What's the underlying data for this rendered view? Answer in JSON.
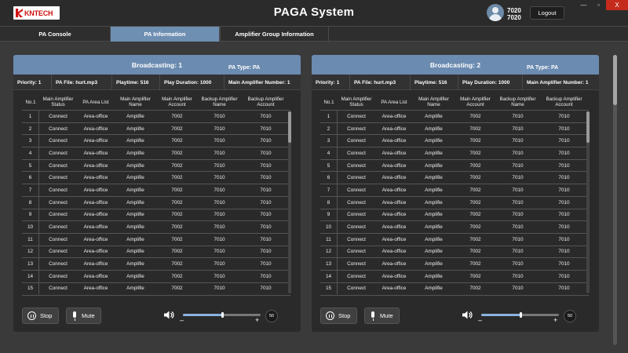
{
  "app": {
    "logo_text": "KNTECH",
    "title": "PAGA System",
    "user_line1": "7020",
    "user_line2": "7020",
    "logout_label": "Logout",
    "window_controls": {
      "minimize": "—",
      "restore": "▫",
      "close": "X"
    }
  },
  "tabs": [
    {
      "label": "PA Console",
      "active": false
    },
    {
      "label": "PA Information",
      "active": true
    },
    {
      "label": "Amplifier Group Information",
      "active": false
    }
  ],
  "panels": [
    {
      "broadcasting_title": "Broadcasting: 1",
      "pa_type": "PA Type: PA",
      "info": {
        "priority": "Priority: 1",
        "pa_file": "PA File: hurt.mp3",
        "playtime": "Playtime: 516",
        "play_duration": "Play Duration: 1000",
        "main_amplifier_number": "Main Amplifier Number: 1"
      },
      "stop_label": "Stop",
      "mute_label": "Mute",
      "volume": 50,
      "volume_label": "50"
    },
    {
      "broadcasting_title": "Broadcasting: 2",
      "pa_type": "PA Type: PA",
      "info": {
        "priority": "Priority: 1",
        "pa_file": "PA File: hurt.mp3",
        "playtime": "Playtime: 516",
        "play_duration": "Play Duration: 1000",
        "main_amplifier_number": "Main Amplifier Number: 1"
      },
      "stop_label": "Stop",
      "mute_label": "Mute",
      "volume": 50,
      "volume_label": "50"
    }
  ],
  "table": {
    "columns": [
      "No.1",
      "Main Amplifier Status",
      "PA Area List",
      "Main Amplifier Name",
      "Main Amplifier Account",
      "Backup Amplifier Name",
      "Backup Amplifier Account"
    ],
    "rows": [
      [
        "1",
        "Connect",
        "Area-office",
        "Amplifie",
        "7002",
        "7010",
        "7010"
      ],
      [
        "2",
        "Connect",
        "Area-office",
        "Amplifie",
        "7002",
        "7010",
        "7010"
      ],
      [
        "3",
        "Connect",
        "Area-office",
        "Amplifie",
        "7002",
        "7010",
        "7010"
      ],
      [
        "4",
        "Connect",
        "Area-office",
        "Amplifie",
        "7002",
        "7010",
        "7010"
      ],
      [
        "5",
        "Connect",
        "Area-office",
        "Amplifie",
        "7002",
        "7010",
        "7010"
      ],
      [
        "6",
        "Connect",
        "Area-office",
        "Amplifie",
        "7002",
        "7010",
        "7010"
      ],
      [
        "7",
        "Connect",
        "Area-office",
        "Amplifie",
        "7002",
        "7010",
        "7010"
      ],
      [
        "8",
        "Connect",
        "Area-office",
        "Amplifie",
        "7002",
        "7010",
        "7010"
      ],
      [
        "9",
        "Connect",
        "Area-office",
        "Amplifie",
        "7002",
        "7010",
        "7010"
      ],
      [
        "10",
        "Connect",
        "Area-office",
        "Amplifie",
        "7002",
        "7010",
        "7010"
      ],
      [
        "11",
        "Connect",
        "Area-office",
        "Amplifie",
        "7002",
        "7010",
        "7010"
      ],
      [
        "12",
        "Connect",
        "Area-office",
        "Amplifie",
        "7002",
        "7010",
        "7010"
      ],
      [
        "13",
        "Connect",
        "Area-office",
        "Amplifie",
        "7002",
        "7010",
        "7010"
      ],
      [
        "14",
        "Connect",
        "Area-office",
        "Amplifie",
        "7002",
        "7010",
        "7010"
      ],
      [
        "15",
        "Connect",
        "Area-office",
        "Amplifie",
        "7002",
        "7010",
        "7010"
      ]
    ]
  },
  "icons": {
    "user": "user-avatar-icon",
    "stop": "pause-circle-icon",
    "mute": "microphone-icon",
    "volume": "speaker-icon"
  },
  "colors": {
    "accent": "#6b8bb0",
    "active_tab": "#6e8fb2",
    "background": "#3a3a3a",
    "panel": "#2a2a2a",
    "close": "#c42b1c"
  }
}
